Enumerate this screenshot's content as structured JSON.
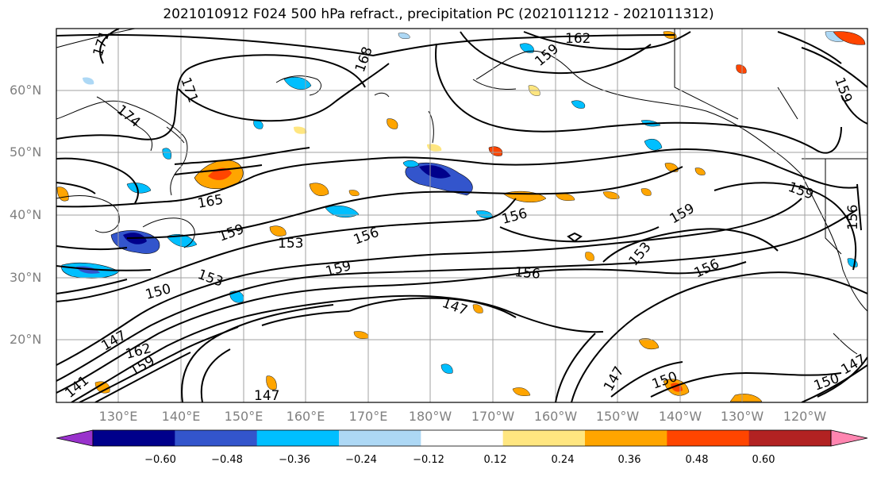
{
  "title": "2021010912 F024 500 hPa refract., precipitation PC (2021011212 - 2021011312)",
  "lat_labels": [
    "60°N",
    "50°N",
    "40°N",
    "30°N",
    "20°N"
  ],
  "lon_labels": [
    "130°E",
    "140°E",
    "150°E",
    "160°E",
    "170°E",
    "180°W",
    "170°W",
    "160°W",
    "150°W",
    "140°W",
    "130°W",
    "120°W"
  ],
  "contour_labels": [
    "171",
    "171",
    "174",
    "168",
    "162",
    "159",
    "165",
    "159",
    "153",
    "156",
    "156",
    "159",
    "153",
    "159",
    "156",
    "153",
    "150",
    "159",
    "147",
    "156",
    "147",
    "162",
    "159",
    "141",
    "147",
    "147",
    "150",
    "150",
    "147",
    "159",
    "156"
  ],
  "colorbar": {
    "colors": [
      "#9932cc",
      "#00008b",
      "#3355cc",
      "#00bfff",
      "#add8f5",
      "#ffffff",
      "#ffe680",
      "#ffa500",
      "#ff4500",
      "#b22222",
      "#ff85b0"
    ],
    "tick_labels": [
      "−0.60",
      "−0.48",
      "−0.36",
      "−0.24",
      "−0.12",
      "0.12",
      "0.24",
      "0.36",
      "0.48",
      "0.60"
    ]
  }
}
